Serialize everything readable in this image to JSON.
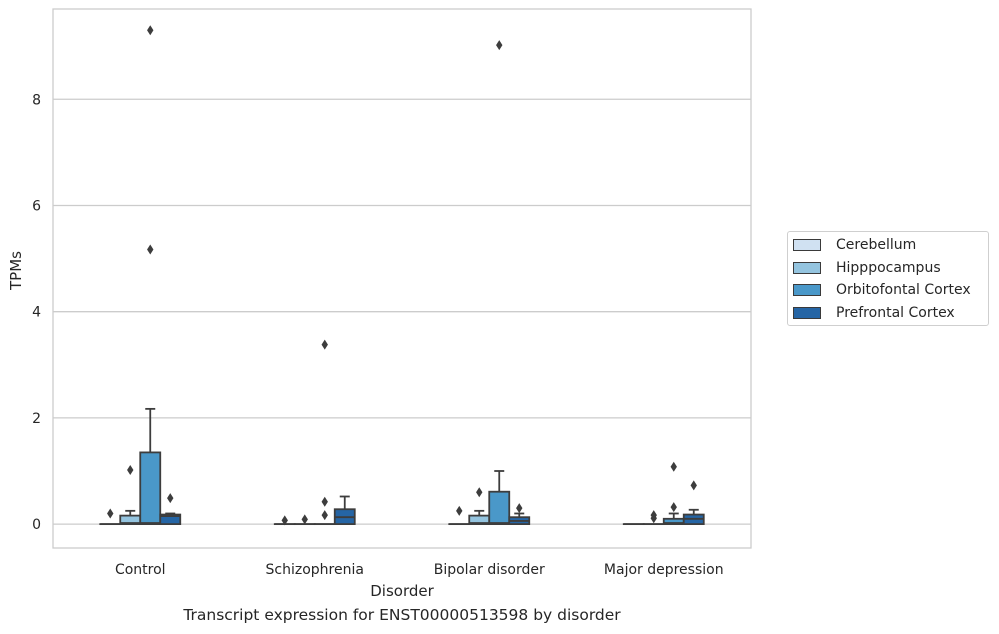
{
  "chart_data": {
    "type": "box",
    "caption": "Transcript expression for ENST00000513598 by disorder",
    "xlabel": "Disorder",
    "ylabel": "TPMs",
    "ylim": [
      -0.45,
      9.7
    ],
    "yticks": [
      0,
      2,
      4,
      6,
      8
    ],
    "ytick_labels": [
      "0",
      "2",
      "4",
      "6",
      "8"
    ],
    "grid": "horizontal",
    "legend_position": "right",
    "categories": [
      "Control",
      "Schizophrenia",
      "Bipolar disorder",
      "Major depression"
    ],
    "series": [
      {
        "name": "Cerebellum",
        "color": "#d0e1f2",
        "boxes": [
          {
            "q1": 0,
            "median": 0,
            "q3": 0,
            "whisker_low": 0,
            "whisker_high": 0,
            "outliers": [
              0.2
            ]
          },
          {
            "q1": 0,
            "median": 0,
            "q3": 0,
            "whisker_low": 0,
            "whisker_high": 0,
            "outliers": [
              0.07
            ]
          },
          {
            "q1": 0,
            "median": 0,
            "q3": 0,
            "whisker_low": 0,
            "whisker_high": 0,
            "outliers": [
              0.25
            ]
          },
          {
            "q1": 0,
            "median": 0,
            "q3": 0,
            "whisker_low": 0,
            "whisker_high": 0,
            "outliers": []
          }
        ]
      },
      {
        "name": "Hipppocampus",
        "color": "#94c4df",
        "boxes": [
          {
            "q1": 0,
            "median": 0.02,
            "q3": 0.16,
            "whisker_low": 0,
            "whisker_high": 0.25,
            "outliers": [
              1.02
            ]
          },
          {
            "q1": 0,
            "median": 0,
            "q3": 0,
            "whisker_low": 0,
            "whisker_high": 0,
            "outliers": [
              0.09
            ]
          },
          {
            "q1": 0,
            "median": 0.02,
            "q3": 0.16,
            "whisker_low": 0,
            "whisker_high": 0.25,
            "outliers": [
              0.6
            ]
          },
          {
            "q1": 0,
            "median": 0,
            "q3": 0,
            "whisker_low": 0,
            "whisker_high": 0,
            "outliers": [
              0.11,
              0.17
            ]
          }
        ]
      },
      {
        "name": "Orbitofontal Cortex",
        "color": "#4a98c9",
        "boxes": [
          {
            "q1": 0,
            "median": 0.02,
            "q3": 1.35,
            "whisker_low": 0,
            "whisker_high": 2.17,
            "outliers": [
              5.17,
              9.3
            ]
          },
          {
            "q1": 0,
            "median": 0,
            "q3": 0,
            "whisker_low": 0,
            "whisker_high": 0,
            "outliers": [
              0.17,
              0.42,
              3.38
            ]
          },
          {
            "q1": 0,
            "median": 0.02,
            "q3": 0.61,
            "whisker_low": 0,
            "whisker_high": 1.0,
            "outliers": [
              9.02
            ]
          },
          {
            "q1": 0,
            "median": 0.02,
            "q3": 0.1,
            "whisker_low": 0,
            "whisker_high": 0.2,
            "outliers": [
              0.32,
              1.08
            ]
          }
        ]
      },
      {
        "name": "Prefrontal Cortex",
        "color": "#2565a5",
        "boxes": [
          {
            "q1": 0,
            "median": 0.15,
            "q3": 0.18,
            "whisker_low": 0,
            "whisker_high": 0.2,
            "outliers": [
              0.49
            ]
          },
          {
            "q1": 0,
            "median": 0.13,
            "q3": 0.28,
            "whisker_low": 0,
            "whisker_high": 0.52,
            "outliers": []
          },
          {
            "q1": 0,
            "median": 0.06,
            "q3": 0.13,
            "whisker_low": 0,
            "whisker_high": 0.2,
            "outliers": [
              0.3
            ]
          },
          {
            "q1": 0,
            "median": 0.1,
            "q3": 0.18,
            "whisker_low": 0,
            "whisker_high": 0.27,
            "outliers": [
              0.73
            ]
          }
        ]
      }
    ]
  }
}
